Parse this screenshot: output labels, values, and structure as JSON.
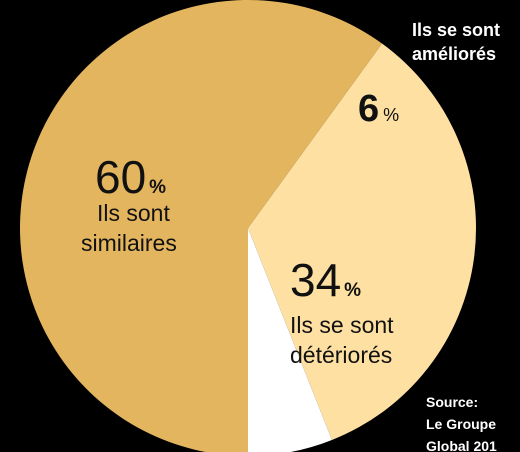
{
  "chart_data": {
    "type": "pie",
    "slices": [
      {
        "label_lines": [
          "Ils sont",
          "similaires"
        ],
        "value": 60,
        "value_text": "60",
        "unit": "%",
        "color": "#e3b55e"
      },
      {
        "label_lines": [
          "Ils se sont",
          "détériorés"
        ],
        "value": 34,
        "value_text": "34",
        "unit": "%",
        "color": "#fde0a2"
      },
      {
        "label_lines": [
          "Ils se sont",
          "améliorés"
        ],
        "value": 6,
        "value_text": "6",
        "unit": "%",
        "color": "#ffffff"
      }
    ],
    "source_lines": [
      "Source:",
      "Le Groupe",
      "Global 201"
    ]
  },
  "colors": {
    "background": "#000000",
    "text_dark": "#111111",
    "text_light": "#ffffff"
  }
}
